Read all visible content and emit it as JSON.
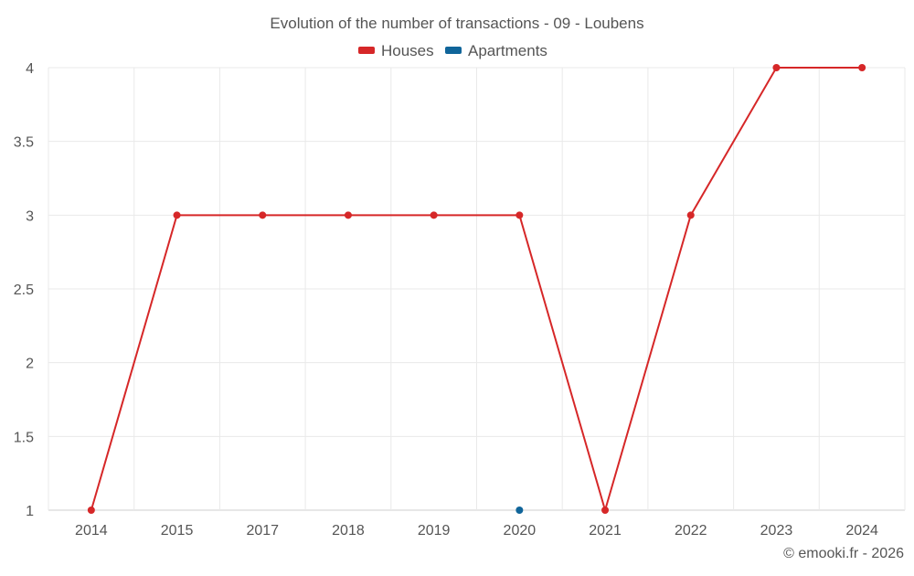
{
  "credit": "© emooki.fr - 2026",
  "colors": {
    "houses": "#d62728",
    "apartments": "#10659a"
  },
  "chart_data": {
    "type": "line",
    "title": "Evolution of the number of transactions - 09 - Loubens",
    "xlabel": "",
    "ylabel": "",
    "categories": [
      "2014",
      "2015",
      "2017",
      "2018",
      "2019",
      "2020",
      "2021",
      "2022",
      "2023",
      "2024"
    ],
    "ylim": [
      1,
      4
    ],
    "yticks": [
      "1",
      "1.5",
      "2",
      "2.5",
      "3",
      "3.5",
      "4"
    ],
    "grid": true,
    "legend_position": "top-center",
    "series": [
      {
        "name": "Houses",
        "color": "#d62728",
        "values": [
          1,
          3,
          3,
          3,
          3,
          3,
          1,
          3,
          4,
          4
        ]
      },
      {
        "name": "Apartments",
        "color": "#10659a",
        "values": [
          null,
          null,
          null,
          null,
          null,
          1,
          null,
          null,
          null,
          null
        ]
      }
    ]
  }
}
